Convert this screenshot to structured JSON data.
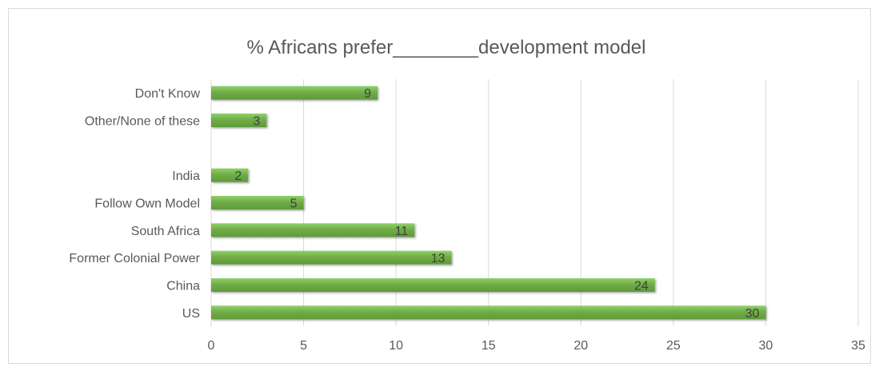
{
  "chart_data": {
    "type": "bar",
    "orientation": "horizontal",
    "title": "% Africans prefer________development model",
    "xlabel": "",
    "ylabel": "",
    "categories": [
      "Don't Know",
      "Other/None of these",
      "",
      "India",
      "Follow Own Model",
      "South Africa",
      "Former Colonial Power",
      "China",
      "US"
    ],
    "values": [
      9,
      3,
      null,
      2,
      5,
      11,
      13,
      24,
      30
    ],
    "data_labels": [
      "9",
      "3",
      "",
      "2",
      "5",
      "11",
      "13",
      "24",
      "30"
    ],
    "xlim": [
      0,
      35
    ],
    "x_ticks": [
      0,
      5,
      10,
      15,
      20,
      25,
      30,
      35
    ],
    "x_tick_labels": [
      "0",
      "5",
      "10",
      "15",
      "20",
      "25",
      "30",
      "35"
    ],
    "grid": "vertical",
    "legend": "none",
    "colors": {
      "bar": "#70ad47",
      "bar_highlight": "#8fd16a",
      "bar_shadow": "#4e8a2f",
      "gridline": "#d9d9d9",
      "text": "#595959",
      "label": "#404040"
    }
  }
}
